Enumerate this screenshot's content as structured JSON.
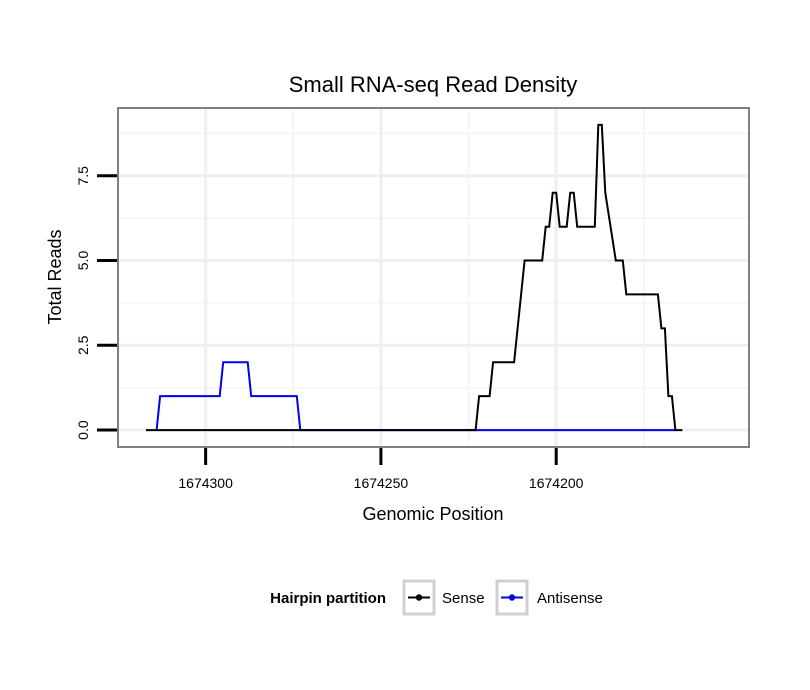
{
  "chart_data": {
    "type": "line",
    "title": "Small RNA-seq Read Density",
    "xlabel": "Genomic Position",
    "ylabel": "Total Reads",
    "x_reversed": true,
    "xlim": [
      1674325,
      1674145
    ],
    "ylim": [
      -0.5,
      9.5
    ],
    "x_ticks": [
      1674300,
      1674250,
      1674200
    ],
    "x_tick_labels": [
      "1674300",
      "1674250",
      "1674200"
    ],
    "y_ticks": [
      0,
      2.5,
      5,
      7.5
    ],
    "y_tick_labels": [
      "0.0",
      "2.5",
      "5.0",
      "7.5"
    ],
    "grid": true,
    "legend": {
      "title": "Hairpin partition",
      "position": "bottom",
      "entries": [
        "Sense",
        "Antisense"
      ]
    },
    "series": [
      {
        "name": "Sense",
        "color": "#000000",
        "points": [
          [
            1674317,
            0
          ],
          [
            1674223,
            0
          ],
          [
            1674222,
            1
          ],
          [
            1674219,
            1
          ],
          [
            1674218,
            2
          ],
          [
            1674212,
            2
          ],
          [
            1674209,
            5
          ],
          [
            1674204,
            5
          ],
          [
            1674203,
            6
          ],
          [
            1674202,
            6
          ],
          [
            1674201,
            7
          ],
          [
            1674200,
            7
          ],
          [
            1674199,
            6
          ],
          [
            1674197,
            6
          ],
          [
            1674196,
            7
          ],
          [
            1674195,
            7
          ],
          [
            1674194,
            6
          ],
          [
            1674189,
            6
          ],
          [
            1674188,
            9
          ],
          [
            1674187,
            9
          ],
          [
            1674186,
            7
          ],
          [
            1674183,
            5
          ],
          [
            1674181,
            5
          ],
          [
            1674180,
            4
          ],
          [
            1674171,
            4
          ],
          [
            1674170,
            3
          ],
          [
            1674169,
            3
          ],
          [
            1674168,
            1
          ],
          [
            1674167,
            1
          ],
          [
            1674166,
            0
          ],
          [
            1674164,
            0
          ]
        ]
      },
      {
        "name": "Antisense",
        "color": "#0000ee",
        "points": [
          [
            1674314,
            0
          ],
          [
            1674313,
            1
          ],
          [
            1674296,
            1
          ],
          [
            1674295,
            2
          ],
          [
            1674288,
            2
          ],
          [
            1674287,
            1
          ],
          [
            1674274,
            1
          ],
          [
            1674273,
            0
          ],
          [
            1674166,
            0
          ]
        ]
      }
    ]
  }
}
